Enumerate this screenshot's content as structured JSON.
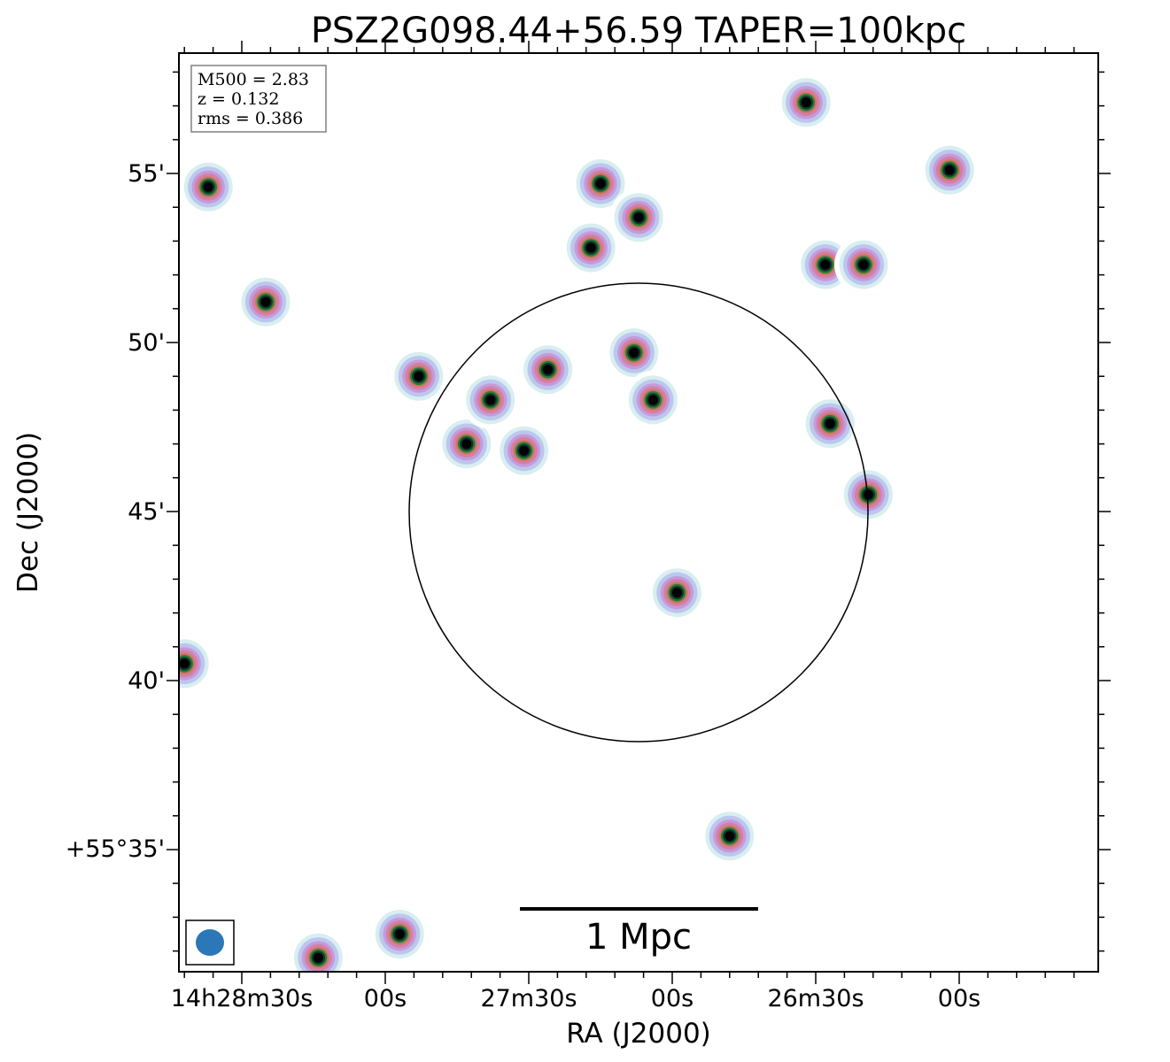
{
  "chart_data": {
    "type": "heatmap",
    "title": "PSZ2G098.44+56.59 TAPER=100kpc",
    "xlabel": "RA (J2000)",
    "ylabel": "Dec (J2000)",
    "x_ticks": [
      "14h28m30s",
      "00s",
      "27m30s",
      "00s",
      "26m30s",
      "00s"
    ],
    "y_ticks": [
      "55'",
      "50'",
      "45'",
      "40'",
      "+55°35'"
    ],
    "info_box": [
      "M500 = 2.83",
      "z = 0.132",
      "rms = 0.386"
    ],
    "scale_bar_label": "1 Mpc",
    "beam": "ellipse",
    "colormap": [
      "#ffffff",
      "#d8eef0",
      "#bcc6ee",
      "#c69ad8",
      "#d47fa8",
      "#c9795a",
      "#2e7a3a",
      "#0a3a30",
      "#000000"
    ],
    "circle_color": "#000000",
    "beam_color": "#2b77b8",
    "sources": [
      {
        "ra": "14h28m37s",
        "dec": "+55°54.6'",
        "peak": 1.0
      },
      {
        "ra": "14h28m25s",
        "dec": "+55°51.2'",
        "peak": 1.0
      },
      {
        "ra": "14h27m53s",
        "dec": "+55°49.0'",
        "peak": 1.0
      },
      {
        "ra": "14h27m43s",
        "dec": "+55°47.0'",
        "peak": 1.0
      },
      {
        "ra": "14h27m38s",
        "dec": "+55°48.3'",
        "peak": 1.0
      },
      {
        "ra": "14h27m31s",
        "dec": "+55°46.8'",
        "peak": 1.0
      },
      {
        "ra": "14h27m26s",
        "dec": "+55°49.2'",
        "peak": 0.7
      },
      {
        "ra": "14h27m17s",
        "dec": "+55°52.8'",
        "peak": 1.0
      },
      {
        "ra": "14h27m15s",
        "dec": "+55°54.7'",
        "peak": 1.0
      },
      {
        "ra": "14h27m07s",
        "dec": "+55°53.7'",
        "peak": 1.0
      },
      {
        "ra": "14h27m08s",
        "dec": "+55°49.7'",
        "peak": 1.0
      },
      {
        "ra": "14h27m04s",
        "dec": "+55°48.3'",
        "peak": 1.0
      },
      {
        "ra": "14h26m59s",
        "dec": "+55°42.6'",
        "peak": 1.0
      },
      {
        "ra": "14h26m48s",
        "dec": "+55°35.4'",
        "peak": 1.0
      },
      {
        "ra": "14h26m28s",
        "dec": "+55°52.3'",
        "peak": 1.0
      },
      {
        "ra": "14h26m27s",
        "dec": "+55°47.6'",
        "peak": 1.0
      },
      {
        "ra": "14h26m19s",
        "dec": "+55°45.5'",
        "peak": 1.0
      },
      {
        "ra": "14h26m20s",
        "dec": "+55°52.3'",
        "peak": 1.0
      },
      {
        "ra": "14h26m02s",
        "dec": "+55°55.1'",
        "peak": 1.0
      },
      {
        "ra": "14h26m32s",
        "dec": "+55°57.1'",
        "peak": 1.0
      },
      {
        "ra": "14h27m57s",
        "dec": "+55°32.5'",
        "peak": 1.0
      },
      {
        "ra": "14h28m14s",
        "dec": "+55°31.8'",
        "peak": 1.0
      },
      {
        "ra": "14h28m42s",
        "dec": "+55°40.5'",
        "peak": 1.0
      }
    ]
  }
}
